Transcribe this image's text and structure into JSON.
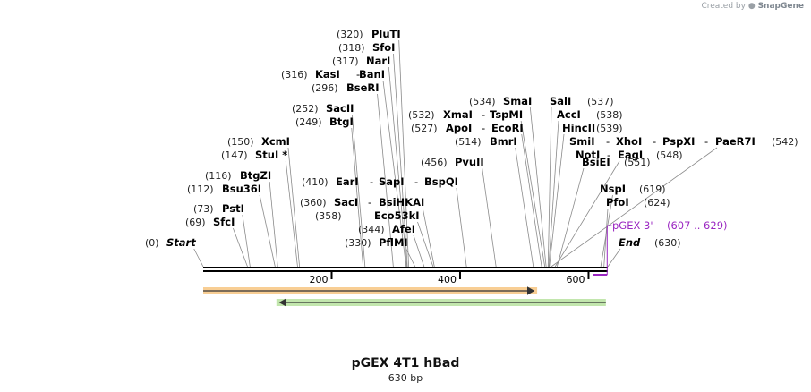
{
  "credit": {
    "prefix": "Created by",
    "brand": "SnapGene"
  },
  "map": {
    "title": "pGEX 4T1 hBad",
    "length_label": "630 bp",
    "total_bp": 630,
    "ruler_ticks": [
      200,
      400,
      600
    ],
    "features": [
      {
        "name": "orange-feature",
        "start": 0,
        "end": 520,
        "direction": "forward",
        "color": "#f2a63c"
      },
      {
        "name": "green-feature",
        "start": 114,
        "end": 627,
        "direction": "reverse",
        "color": "#8fd16a"
      }
    ],
    "primer": {
      "name": "pGEX 3'",
      "range": "(607 .. 629)",
      "start": 607,
      "end": 629,
      "color": "#9b27c2"
    },
    "rows": [
      {
        "parts": [
          {
            "t": "(320)",
            "s": "pos"
          },
          {
            "t": "PluTI",
            "s": "name",
            "bp": 320
          }
        ]
      },
      {
        "parts": [
          {
            "t": "(318)",
            "s": "pos"
          },
          {
            "t": "SfoI",
            "s": "name",
            "bp": 318
          }
        ]
      },
      {
        "parts": [
          {
            "t": "(317)",
            "s": "pos"
          },
          {
            "t": "NarI",
            "s": "name",
            "bp": 317
          }
        ]
      },
      {
        "parts": [
          {
            "t": "(316)",
            "s": "pos"
          },
          {
            "t": "KasI",
            "s": "name",
            "bp": 316
          },
          {
            "t": "-",
            "s": "sep"
          },
          {
            "t": "BanI",
            "s": "name",
            "bp": 316
          }
        ]
      },
      {
        "parts": [
          {
            "t": "(296)",
            "s": "pos"
          },
          {
            "t": "BseRI",
            "s": "name",
            "bp": 296
          }
        ]
      },
      {
        "parts": [
          {
            "t": "(534)",
            "s": "pos"
          },
          {
            "t": "SmaI",
            "s": "name",
            "bp": 534
          },
          {
            "t": "SalI",
            "s": "name",
            "bp": 537
          },
          {
            "t": "(537)",
            "s": "pos"
          }
        ]
      },
      {
        "parts": [
          {
            "t": "(252)",
            "s": "pos"
          },
          {
            "t": "SacII",
            "s": "name",
            "bp": 252
          }
        ]
      },
      {
        "parts": [
          {
            "t": "(532)",
            "s": "pos"
          },
          {
            "t": "XmaI",
            "s": "name",
            "bp": 532
          },
          {
            "t": "-",
            "s": "sep"
          },
          {
            "t": "TspMI",
            "s": "name",
            "bp": 532
          },
          {
            "t": "AccI",
            "s": "name",
            "bp": 538
          },
          {
            "t": "(538)",
            "s": "pos"
          }
        ]
      },
      {
        "parts": [
          {
            "t": "(249)",
            "s": "pos"
          },
          {
            "t": "BtgI",
            "s": "name",
            "bp": 249
          }
        ]
      },
      {
        "parts": [
          {
            "t": "(527)",
            "s": "pos"
          },
          {
            "t": "ApoI",
            "s": "name",
            "bp": 527
          },
          {
            "t": "-",
            "s": "sep"
          },
          {
            "t": "EcoRI",
            "s": "name",
            "bp": 527
          },
          {
            "t": "HincII",
            "s": "name",
            "bp": 539
          },
          {
            "t": "(539)",
            "s": "pos"
          }
        ]
      },
      {
        "parts": [
          {
            "t": "(150)",
            "s": "pos"
          },
          {
            "t": "XcmI",
            "s": "name",
            "bp": 150
          }
        ]
      },
      {
        "parts": [
          {
            "t": "(514)",
            "s": "pos"
          },
          {
            "t": "BmrI",
            "s": "name",
            "bp": 514
          },
          {
            "t": "SmiI",
            "s": "name",
            "bp": 542
          },
          {
            "t": "-",
            "s": "sep"
          },
          {
            "t": "XhoI",
            "s": "name",
            "bp": 542
          },
          {
            "t": "-",
            "s": "sep"
          },
          {
            "t": "PspXI",
            "s": "name",
            "bp": 542
          },
          {
            "t": "-",
            "s": "sep"
          },
          {
            "t": "PaeR7I",
            "s": "name",
            "bp": 542
          },
          {
            "t": "(542)",
            "s": "pos"
          }
        ]
      },
      {
        "parts": [
          {
            "t": "(147)",
            "s": "pos"
          },
          {
            "t": "StuI *",
            "s": "name",
            "bp": 147
          },
          {
            "t": "NotI",
            "s": "name",
            "bp": 548
          },
          {
            "t": "-",
            "s": "sep"
          },
          {
            "t": "EagI",
            "s": "name",
            "bp": 548
          },
          {
            "t": "(548)",
            "s": "pos"
          }
        ]
      },
      {
        "parts": [
          {
            "t": "(456)",
            "s": "pos"
          },
          {
            "t": "PvuII",
            "s": "name",
            "bp": 456
          },
          {
            "t": "BsiEI",
            "s": "name",
            "bp": 551
          },
          {
            "t": "(551)",
            "s": "pos"
          }
        ]
      },
      {
        "parts": [
          {
            "t": "(116)",
            "s": "pos"
          },
          {
            "t": "BtgZI",
            "s": "name",
            "bp": 116
          }
        ]
      },
      {
        "parts": [
          {
            "t": "(410)",
            "s": "pos"
          },
          {
            "t": "EarI",
            "s": "name",
            "bp": 410
          },
          {
            "t": "-",
            "s": "sep"
          },
          {
            "t": "SapI",
            "s": "name",
            "bp": 410
          },
          {
            "t": "-",
            "s": "sep"
          },
          {
            "t": "BspQI",
            "s": "name",
            "bp": 410
          }
        ]
      },
      {
        "parts": [
          {
            "t": "(112)",
            "s": "pos"
          },
          {
            "t": "Bsu36I",
            "s": "name",
            "bp": 112
          },
          {
            "t": "NspI",
            "s": "name",
            "bp": 619
          },
          {
            "t": "(619)",
            "s": "pos"
          }
        ]
      },
      {
        "parts": [
          {
            "t": "(360)",
            "s": "pos"
          },
          {
            "t": "SacI",
            "s": "name",
            "bp": 360
          },
          {
            "t": "-",
            "s": "sep"
          },
          {
            "t": "BsiHKAI",
            "s": "name",
            "bp": 360
          },
          {
            "t": "PfoI",
            "s": "name",
            "bp": 624
          },
          {
            "t": "(624)",
            "s": "pos"
          }
        ]
      },
      {
        "parts": [
          {
            "t": "(73)",
            "s": "pos"
          },
          {
            "t": "PstI",
            "s": "name",
            "bp": 73
          }
        ]
      },
      {
        "parts": [
          {
            "t": "(358)",
            "s": "pos"
          },
          {
            "t": "Eco53kI",
            "s": "name",
            "bp": 358
          }
        ]
      },
      {
        "parts": [
          {
            "t": "(69)",
            "s": "pos"
          },
          {
            "t": "SfcI",
            "s": "name",
            "bp": 69
          }
        ]
      },
      {
        "parts": [
          {
            "t": "(344)",
            "s": "pos"
          },
          {
            "t": "AfeI",
            "s": "name",
            "bp": 344
          }
        ]
      },
      {
        "parts": [
          {
            "t": "(0)",
            "s": "pos"
          },
          {
            "t": "Start",
            "s": "emph",
            "bp": 0
          },
          {
            "t": "(330)",
            "s": "pos"
          },
          {
            "t": "PflMI",
            "s": "name",
            "bp": 330
          },
          {
            "t": "End",
            "s": "emph",
            "bp": 630
          },
          {
            "t": "(630)",
            "s": "pos"
          }
        ]
      }
    ]
  }
}
